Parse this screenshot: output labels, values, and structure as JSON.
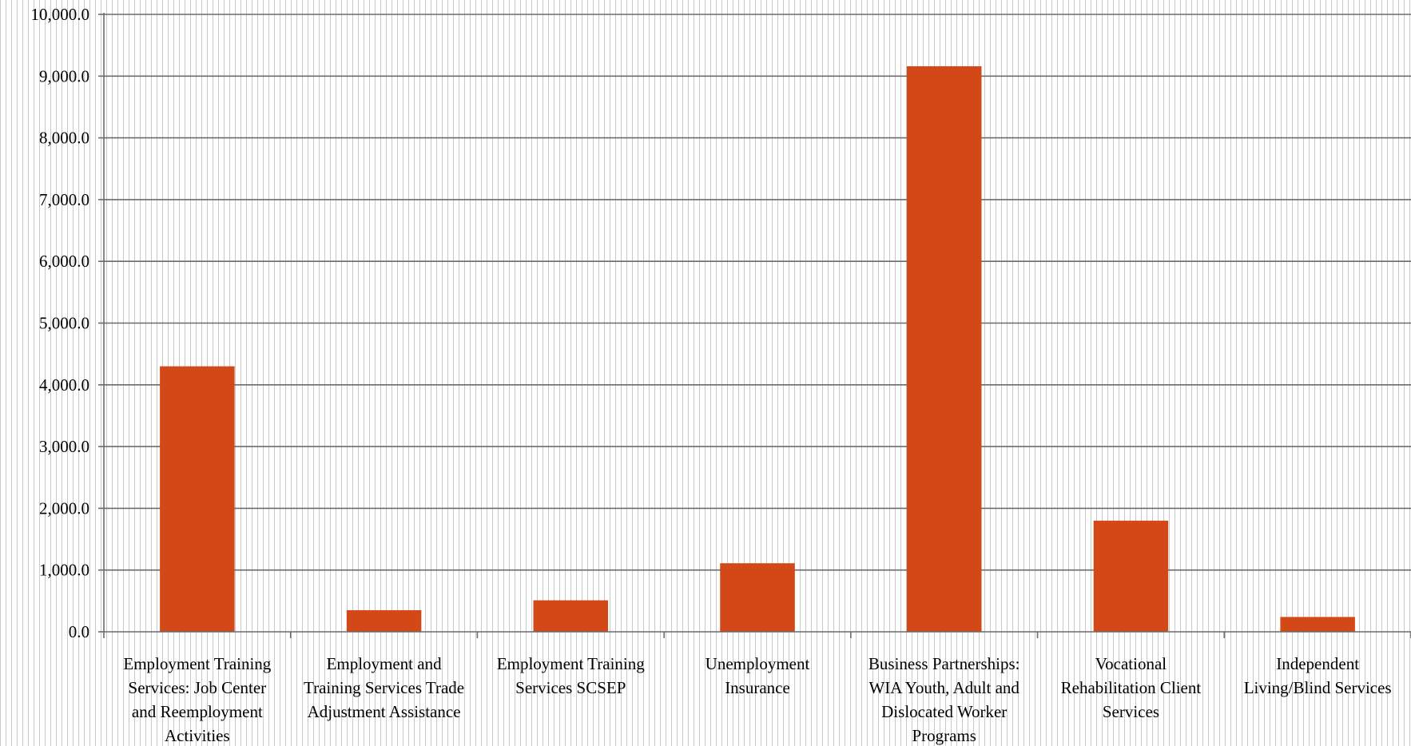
{
  "chart_data": {
    "type": "bar",
    "title": "",
    "xlabel": "",
    "ylabel": "",
    "ylim": [
      0,
      10000
    ],
    "y_ticks": [
      "0.0",
      "1,000.0",
      "2,000.0",
      "3,000.0",
      "4,000.0",
      "5,000.0",
      "6,000.0",
      "7,000.0",
      "8,000.0",
      "9,000.0",
      "10,000.0"
    ],
    "grid": true,
    "legend": "none",
    "bar_color": "#D34817",
    "categories": [
      "Employment Training Services: Job Center and Reemployment Activities",
      "Employment and Training Services Trade Adjustment Assistance",
      "Employment Training Services SCSEP",
      "Unemployment Insurance",
      "Business Partnerships: WIA Youth, Adult and Dislocated Worker Programs",
      "Vocational Rehabilitation Client Services",
      "Independent Living/Blind Services"
    ],
    "category_label_lines": [
      [
        "Employment Training",
        "Services: Job Center",
        "and Reemployment",
        "Activities"
      ],
      [
        "Employment and",
        "Training Services Trade",
        "Adjustment Assistance"
      ],
      [
        "Employment Training",
        "Services SCSEP"
      ],
      [
        "Unemployment",
        "Insurance"
      ],
      [
        "Business Partnerships:",
        "WIA Youth, Adult and",
        "Dislocated Worker",
        "Programs"
      ],
      [
        "Vocational",
        "Rehabilitation Client",
        "Services"
      ],
      [
        "Independent",
        "Living/Blind Services"
      ]
    ],
    "values": [
      4300,
      350,
      510,
      1110,
      9160,
      1800,
      240
    ]
  }
}
